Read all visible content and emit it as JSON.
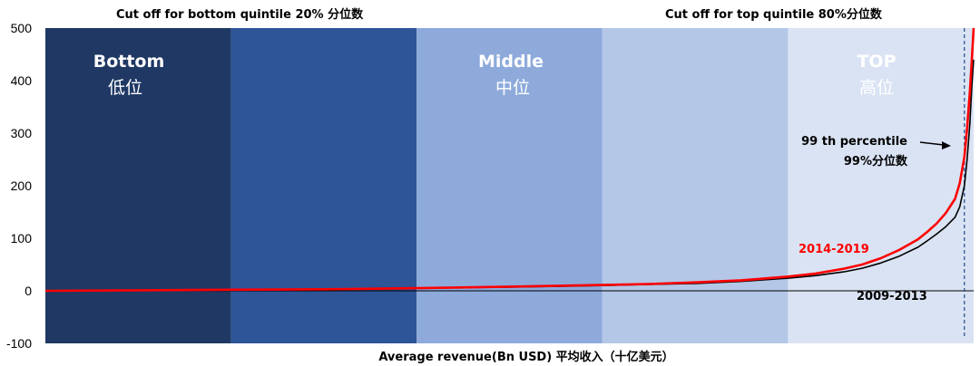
{
  "chart_data": {
    "type": "line",
    "xlabel": "Average revenue(Bn USD) 平均收入（十亿美元）",
    "ylabel": "",
    "ylim": [
      -100,
      500
    ],
    "yticks": [
      500,
      400,
      300,
      200,
      100,
      0,
      -100
    ],
    "bands": [
      {
        "from": 0,
        "to": 20,
        "color": "#1f3864",
        "label": "Bottom",
        "label_cn": "低位"
      },
      {
        "from": 20,
        "to": 40,
        "color": "#2e5597",
        "label": "",
        "label_cn": ""
      },
      {
        "from": 40,
        "to": 60,
        "color": "#8eaadb",
        "label": "Middle",
        "label_cn": "中位"
      },
      {
        "from": 60,
        "to": 80,
        "color": "#b4c7e7",
        "label": "",
        "label_cn": ""
      },
      {
        "from": 80,
        "to": 100,
        "color": "#dae3f3",
        "label": "TOP",
        "label_cn": "高位"
      }
    ],
    "annotations": {
      "bottom_cutoff": "Cut off for bottom quintile 20% 分位数",
      "top_cutoff": "Cut off for top quintile  80%分位数",
      "p99_line1": "99 th percentile",
      "p99_line2": "99%分位数",
      "p99_x": 99
    },
    "series": [
      {
        "name": "2014-2019",
        "color": "#ff0000",
        "x": [
          0,
          10,
          20,
          30,
          40,
          50,
          60,
          65,
          70,
          75,
          80,
          83,
          86,
          88,
          90,
          92,
          94,
          95,
          96,
          97,
          98,
          98.5,
          99,
          99.3,
          99.6,
          99.8,
          100
        ],
        "y": [
          0,
          1,
          2,
          3,
          5,
          8,
          11,
          13,
          16,
          20,
          27,
          33,
          42,
          50,
          62,
          78,
          98,
          112,
          128,
          148,
          175,
          205,
          255,
          310,
          380,
          440,
          500
        ]
      },
      {
        "name": "2009-2013",
        "color": "#000000",
        "x": [
          0,
          10,
          20,
          30,
          40,
          50,
          60,
          65,
          70,
          75,
          80,
          83,
          86,
          88,
          90,
          92,
          94,
          95,
          96,
          97,
          98,
          98.5,
          99,
          99.3,
          99.6,
          99.8,
          100
        ],
        "y": [
          0,
          1,
          2,
          3,
          5,
          7,
          10,
          12,
          14,
          18,
          24,
          29,
          36,
          43,
          53,
          66,
          83,
          95,
          108,
          122,
          140,
          160,
          200,
          250,
          320,
          390,
          440
        ]
      }
    ]
  }
}
